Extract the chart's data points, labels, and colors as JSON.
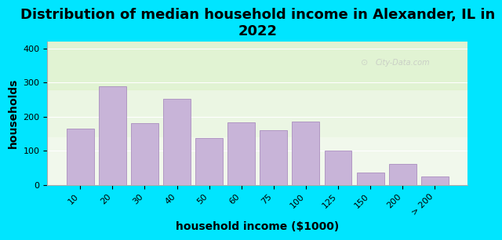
{
  "title": "Distribution of median household income in Alexander, IL in\n2022",
  "xlabel": "household income ($1000)",
  "ylabel": "households",
  "bar_labels": [
    "10",
    "20",
    "30",
    "40",
    "50",
    "60",
    "75",
    "100",
    "125",
    "150",
    "200",
    "> 200"
  ],
  "bar_values": [
    165,
    290,
    180,
    252,
    138,
    183,
    160,
    185,
    100,
    35,
    62,
    25
  ],
  "bar_color": "#c8b4d8",
  "bar_edge_color": "#a080b8",
  "ylim": [
    0,
    420
  ],
  "yticks": [
    0,
    100,
    200,
    300,
    400
  ],
  "background_outer": "#00e5ff",
  "background_inner_top": "#e8f5e0",
  "background_inner_bottom": "#f5ffe8",
  "title_fontsize": 13,
  "axis_label_fontsize": 10,
  "tick_fontsize": 8,
  "watermark": "City-Data.com"
}
